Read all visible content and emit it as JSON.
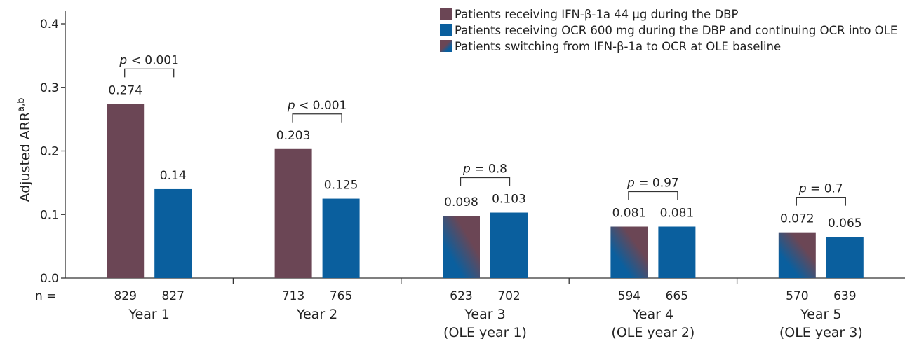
{
  "chart_data": {
    "type": "bar",
    "ylabel": "Adjusted ARR",
    "ylabel_superscript": "a,b",
    "ylim": [
      0,
      0.4
    ],
    "yticks": [
      "0.0",
      "0.1",
      "0.2",
      "0.3",
      "0.4"
    ],
    "n_prefix": "n =",
    "legend_position": "top-right",
    "colors": {
      "ifn": "#6b4655",
      "ocr": "#0a5f9e",
      "switch_top": "#6b4655",
      "switch_bottom": "#0a5f9e"
    },
    "series": [
      {
        "name": "Patients receiving IFN-β-1a 44 μg during the DBP",
        "key": "ifn"
      },
      {
        "name": "Patients receiving OCR 600 mg during the DBP and continuing OCR into OLE",
        "key": "ocr"
      },
      {
        "name": "Patients switching from IFN-β-1a to OCR at OLE baseline",
        "key": "switch"
      }
    ],
    "groups": [
      {
        "label": [
          "Year 1"
        ],
        "p_value": "< 0.001",
        "bars": [
          {
            "series": "ifn",
            "value": 0.274,
            "value_label": "0.274",
            "n": "829"
          },
          {
            "series": "ocr",
            "value": 0.14,
            "value_label": "0.14",
            "n": "827"
          }
        ]
      },
      {
        "label": [
          "Year 2"
        ],
        "p_value": "< 0.001",
        "bars": [
          {
            "series": "ifn",
            "value": 0.203,
            "value_label": "0.203",
            "n": "713"
          },
          {
            "series": "ocr",
            "value": 0.125,
            "value_label": "0.125",
            "n": "765"
          }
        ]
      },
      {
        "label": [
          "Year 3",
          "(OLE year 1)"
        ],
        "p_value": "= 0.8",
        "bars": [
          {
            "series": "switch",
            "value": 0.098,
            "value_label": "0.098",
            "n": "623"
          },
          {
            "series": "ocr",
            "value": 0.103,
            "value_label": "0.103",
            "n": "702"
          }
        ]
      },
      {
        "label": [
          "Year 4",
          "(OLE year 2)"
        ],
        "p_value": "= 0.97",
        "bars": [
          {
            "series": "switch",
            "value": 0.081,
            "value_label": "0.081",
            "n": "594"
          },
          {
            "series": "ocr",
            "value": 0.081,
            "value_label": "0.081",
            "n": "665"
          }
        ]
      },
      {
        "label": [
          "Year 5",
          "(OLE year 3)"
        ],
        "p_value": "= 0.7",
        "bars": [
          {
            "series": "switch",
            "value": 0.072,
            "value_label": "0.072",
            "n": "570"
          },
          {
            "series": "ocr",
            "value": 0.065,
            "value_label": "0.065",
            "n": "639"
          }
        ]
      }
    ]
  }
}
